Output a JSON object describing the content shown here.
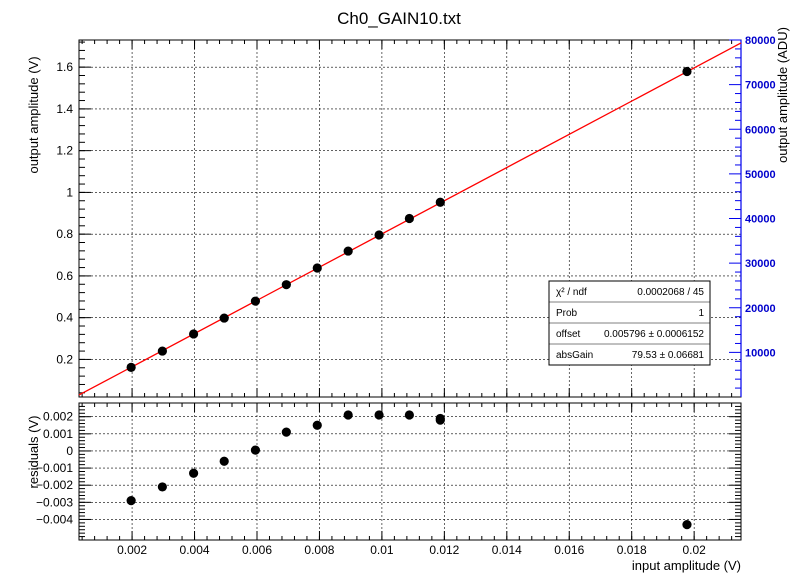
{
  "title": "Ch0_GAIN10.txt",
  "colors": {
    "data": "#000000",
    "fit": "#ff0000",
    "right_axis": "#0000ee",
    "background": "#ffffff"
  },
  "chart_data": [
    {
      "type": "scatter",
      "name": "main",
      "title": "Ch0_GAIN10.txt",
      "xlabel": "",
      "ylabel": "output amplitude (V)",
      "y2label": "output amplitude (ADU)",
      "xlim": [
        0.0003,
        0.0215
      ],
      "ylim": [
        0.02,
        1.73
      ],
      "y2lim": [
        0,
        80000
      ],
      "grid": true,
      "xticks": [
        0.002,
        0.004,
        0.006,
        0.008,
        0.01,
        0.012,
        0.014,
        0.016,
        0.018,
        0.02
      ],
      "xtick_labels": [
        "0.002",
        "0.004",
        "0.006",
        "0.008",
        "0.01",
        "0.012",
        "0.014",
        "0.016",
        "0.018",
        "0.02"
      ],
      "yticks": [
        0.2,
        0.4,
        0.6,
        0.8,
        1.0,
        1.2,
        1.4,
        1.6
      ],
      "ytick_labels": [
        "0.2",
        "0.4",
        "0.6",
        "0.8",
        "1",
        "1.2",
        "1.4",
        "1.6"
      ],
      "y2ticks": [
        10000,
        20000,
        30000,
        40000,
        50000,
        60000,
        70000,
        80000
      ],
      "y2tick_labels": [
        "10000",
        "20000",
        "30000",
        "40000",
        "50000",
        "60000",
        "70000",
        "80000"
      ],
      "points": {
        "x": [
          0.00197,
          0.00297,
          0.00397,
          0.00495,
          0.00595,
          0.00694,
          0.00793,
          0.00892,
          0.00991,
          0.01088,
          0.01187,
          0.01977
        ],
        "y": [
          0.162,
          0.24,
          0.322,
          0.398,
          0.479,
          0.558,
          0.638,
          0.719,
          0.796,
          0.875,
          0.953,
          1.579
        ]
      },
      "fit_line": {
        "offset": 0.005796,
        "gain": 79.53,
        "color": "#ff0000"
      },
      "stats_box": {
        "rows": [
          {
            "label": "χ² / ndf",
            "value": "0.0002068 / 45"
          },
          {
            "label": "Prob",
            "value": "1"
          },
          {
            "label": "offset",
            "value": "0.005796 ± 0.0006152"
          },
          {
            "label": "absGain",
            "value": "79.53 ± 0.06681"
          }
        ],
        "placement": "bottom-right"
      }
    },
    {
      "type": "scatter",
      "name": "residuals",
      "xlabel": "input amplitude (V)",
      "ylabel": "residuals (V)",
      "xlim": [
        0.0003,
        0.0215
      ],
      "ylim": [
        -0.0052,
        0.0028
      ],
      "grid": true,
      "xticks": [
        0.002,
        0.004,
        0.006,
        0.008,
        0.01,
        0.012,
        0.014,
        0.016,
        0.018,
        0.02
      ],
      "xtick_labels": [
        "0.002",
        "0.004",
        "0.006",
        "0.008",
        "0.01",
        "0.012",
        "0.014",
        "0.016",
        "0.018",
        "0.02"
      ],
      "yticks": [
        -0.004,
        -0.003,
        -0.002,
        -0.001,
        0,
        0.001,
        0.002
      ],
      "ytick_labels": [
        "−0.004",
        "−0.003",
        "−0.002",
        "−0.001",
        "0",
        "0.001",
        "0.002"
      ],
      "points": {
        "x": [
          0.00197,
          0.00297,
          0.00397,
          0.00495,
          0.00595,
          0.00694,
          0.00793,
          0.00892,
          0.00991,
          0.01088,
          0.01187,
          0.01187,
          0.01977
        ],
        "y": [
          -0.0029,
          -0.0021,
          -0.0013,
          -0.0006,
          5e-05,
          0.0011,
          0.0015,
          0.0021,
          0.0021,
          0.0021,
          0.0019,
          0.0018,
          -0.0043
        ]
      }
    }
  ]
}
